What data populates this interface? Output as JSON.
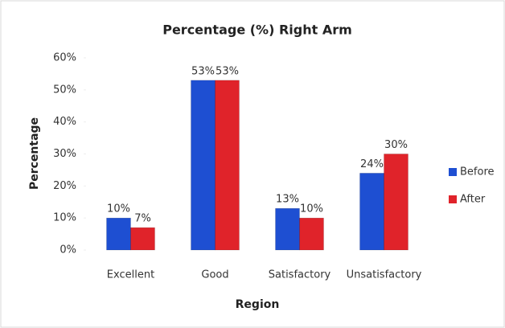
{
  "chart_data": {
    "type": "bar",
    "title": "Percentage (%) Right Arm",
    "x_label": "Region",
    "y_label": "Percentage",
    "categories": [
      "Excellent",
      "Good",
      "Satisfactory",
      "Unsatisfactory"
    ],
    "series": [
      {
        "name": "Before",
        "color": "#1e4fd2",
        "values": [
          10,
          53,
          13,
          24
        ],
        "value_labels": [
          "10%",
          "53%",
          "13%",
          "24%"
        ]
      },
      {
        "name": "After",
        "color": "#e0232a",
        "values": [
          7,
          53,
          10,
          30
        ],
        "value_labels": [
          "7%",
          "53%",
          "10%",
          "30%"
        ]
      }
    ],
    "ylim": [
      0,
      60
    ],
    "yticks": [
      {
        "value": 0,
        "label": "0%"
      },
      {
        "value": 10,
        "label": "10%"
      },
      {
        "value": 20,
        "label": "20%"
      },
      {
        "value": 30,
        "label": "30%"
      },
      {
        "value": 40,
        "label": "40%"
      },
      {
        "value": 50,
        "label": "50%"
      },
      {
        "value": 60,
        "label": "60%"
      }
    ],
    "grid": false,
    "legend": "right"
  }
}
